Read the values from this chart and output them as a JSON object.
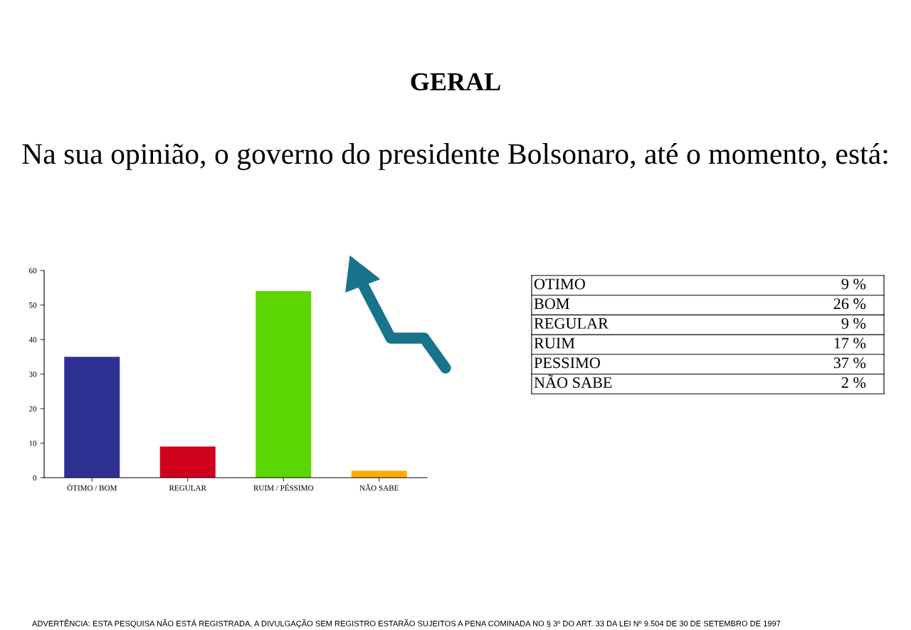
{
  "chart_data": [
    {
      "type": "bar",
      "title": "GERAL",
      "subtitle": "Na sua opinião, o governo do presidente Bolsonaro, até o momento, está:",
      "categories": [
        "ÓTIMO / BOM",
        "REGULAR",
        "RUIM / PÉSSIMO",
        "NÃO SABE"
      ],
      "values": [
        35,
        9,
        54,
        2
      ],
      "colors": [
        "#2f3192",
        "#d0021b",
        "#5cd600",
        "#ffad00"
      ],
      "ylim": [
        0,
        60
      ],
      "yticks": [
        0,
        10,
        20,
        30,
        40,
        50,
        60
      ],
      "grid": false,
      "legend": false,
      "annotations": [
        "ADVERTÊNCIA: ESTA PESQUISA NÃO ESTÁ REGISTRADA, A DIVULGAÇÃO SEM REGISTRO ESTARÃO SUJEITOS A PENA COMINADA NO § 3º DO ART. 33 DA LEI Nº 9.504 DE 30 DE SETEMBRO DE 1997"
      ]
    },
    {
      "type": "other",
      "categories": [
        "OTIMO",
        "BOM",
        "REGULAR",
        "RUIM",
        "PESSIMO",
        "NÃO SABE"
      ],
      "values": [
        9,
        26,
        9,
        17,
        37,
        2
      ],
      "value_labels": [
        "9 %",
        "26 %",
        "9 %",
        "17 %",
        "37 %",
        "2 %"
      ]
    }
  ]
}
